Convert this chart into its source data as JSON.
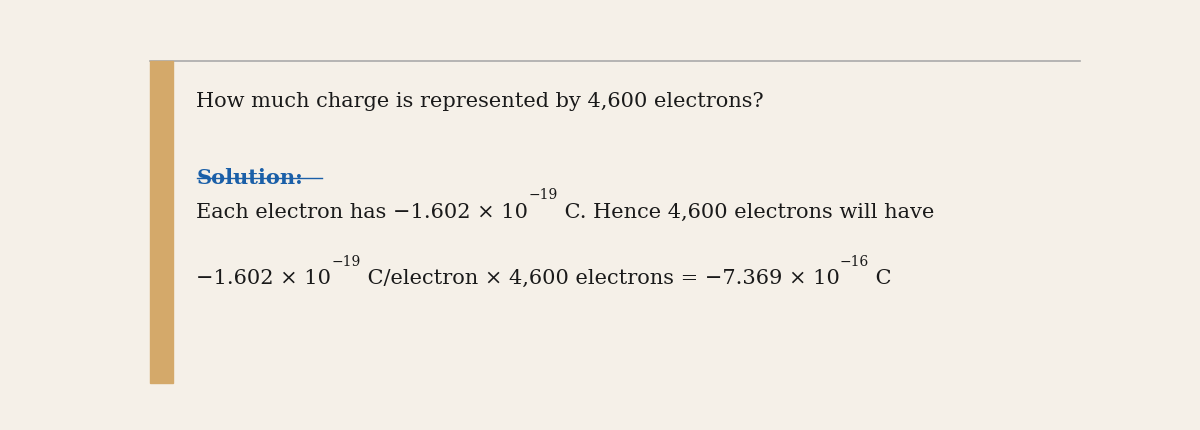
{
  "bg_color": "#f5f0e8",
  "top_line_color": "#aaaaaa",
  "left_accent_color": "#d4a96a",
  "question_text": "How much charge is represented by 4,600 electrons?",
  "solution_label": "Solution:",
  "line1": "Each electron has −1.602 × 10",
  "line1_sup1": "−19",
  "line1_rest": " C. Hence 4,600 electrons will have",
  "line2_part1": "−1.602 × 10",
  "line2_sup1": "−19",
  "line2_part2": " C/electron × 4,600 electrons = −7.369 × 10",
  "line2_sup2": "−16",
  "line2_part3": " C",
  "font_size_question": 15,
  "font_size_solution": 15,
  "font_size_body": 15,
  "font_size_sup": 10,
  "text_color": "#1a1a1a",
  "solution_color": "#1a5fa8"
}
